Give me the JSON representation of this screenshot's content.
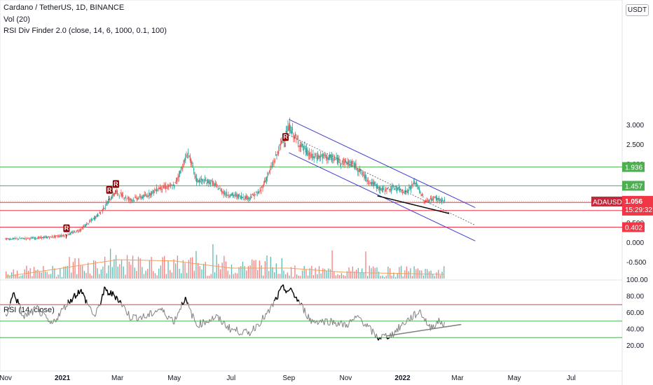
{
  "header": {
    "title": "Cardano / TetherUS, 1D, BINANCE",
    "vol": "Vol (20)",
    "indicator": "RSI Div Finder 2.0 (close, 14, 6, 1000, 0.1, 100)",
    "currency": "USDT",
    "rsi_title": "RSI (14, close)"
  },
  "colors": {
    "up": "#26a69a",
    "down": "#ef5350",
    "channel": "#3f3fd0",
    "support": "#4caf50",
    "resistance": "#f23645",
    "rsi": "#808080",
    "signal": "#8b0000",
    "ma": "#f5a05a"
  },
  "chart_data": [
    {
      "type": "candlestick",
      "symbol": "ADAUSDT",
      "ylim": [
        -0.5,
        3.5
      ],
      "y_ticks": [
        "3.000",
        "2.500",
        "2.000",
        "1.500",
        "1.000",
        "0.500",
        "0.000",
        "-0.500"
      ],
      "x_ticks": [
        "Nov",
        "2021",
        "Mar",
        "May",
        "Jul",
        "Sep",
        "Nov",
        "2022",
        "Mar",
        "May",
        "Jul"
      ],
      "price_series": [
        {
          "d": "2020-11-01",
          "v": 0.1
        },
        {
          "d": "2020-12-01",
          "v": 0.12
        },
        {
          "d": "2020-12-20",
          "v": 0.15
        },
        {
          "d": "2021-01-05",
          "v": 0.2
        },
        {
          "d": "2021-01-20",
          "v": 0.33
        },
        {
          "d": "2021-02-10",
          "v": 0.75
        },
        {
          "d": "2021-02-27",
          "v": 1.3
        },
        {
          "d": "2021-03-15",
          "v": 1.1
        },
        {
          "d": "2021-04-01",
          "v": 1.2
        },
        {
          "d": "2021-04-15",
          "v": 1.4
        },
        {
          "d": "2021-05-01",
          "v": 1.45
        },
        {
          "d": "2021-05-16",
          "v": 2.3
        },
        {
          "d": "2021-05-25",
          "v": 1.6
        },
        {
          "d": "2021-06-10",
          "v": 1.55
        },
        {
          "d": "2021-06-25",
          "v": 1.25
        },
        {
          "d": "2021-07-20",
          "v": 1.15
        },
        {
          "d": "2021-08-01",
          "v": 1.3
        },
        {
          "d": "2021-08-15",
          "v": 2.0
        },
        {
          "d": "2021-08-25",
          "v": 2.6
        },
        {
          "d": "2021-09-02",
          "v": 2.95
        },
        {
          "d": "2021-09-10",
          "v": 2.6
        },
        {
          "d": "2021-09-25",
          "v": 2.2
        },
        {
          "d": "2021-10-10",
          "v": 2.2
        },
        {
          "d": "2021-10-25",
          "v": 2.1
        },
        {
          "d": "2021-11-10",
          "v": 2.0
        },
        {
          "d": "2021-11-25",
          "v": 1.6
        },
        {
          "d": "2021-12-10",
          "v": 1.35
        },
        {
          "d": "2021-12-25",
          "v": 1.4
        },
        {
          "d": "2022-01-05",
          "v": 1.3
        },
        {
          "d": "2022-01-15",
          "v": 1.55
        },
        {
          "d": "2022-01-25",
          "v": 1.05
        },
        {
          "d": "2022-02-05",
          "v": 1.15
        },
        {
          "d": "2022-02-15",
          "v": 1.056
        }
      ],
      "vol_ma": [
        {
          "d": "2020-11-01",
          "v": 0.05
        },
        {
          "d": "2021-01-01",
          "v": 0.25
        },
        {
          "d": "2021-03-01",
          "v": 0.45
        },
        {
          "d": "2021-05-01",
          "v": 0.42
        },
        {
          "d": "2021-07-01",
          "v": 0.25
        },
        {
          "d": "2021-09-01",
          "v": 0.25
        },
        {
          "d": "2021-11-01",
          "v": 0.15
        },
        {
          "d": "2022-01-01",
          "v": 0.12
        },
        {
          "d": "2022-02-15",
          "v": 0.1
        }
      ],
      "horizontal_levels": [
        {
          "value": 1.936,
          "label": "1.936",
          "color": "#4caf50"
        },
        {
          "value": 1.457,
          "label": "1.457",
          "color": "#4caf50"
        },
        {
          "value": 1.032,
          "label": "1.032",
          "color": "#f23645"
        },
        {
          "value": 0.827,
          "label": "0.827",
          "color": "#f23645"
        },
        {
          "value": 0.402,
          "label": "0.402",
          "color": "#f23645"
        }
      ],
      "current_price": {
        "symbol": "ADAUSDT",
        "value": "1.056",
        "countdown": "15:29:32"
      },
      "channel": {
        "upper": [
          {
            "d": "2021-09-01",
            "v": 3.15
          },
          {
            "d": "2022-03-20",
            "v": 0.9
          }
        ],
        "middle": [
          {
            "d": "2021-09-01",
            "v": 2.75
          },
          {
            "d": "2022-03-20",
            "v": 0.45
          }
        ],
        "lower": [
          {
            "d": "2021-09-01",
            "v": 2.3
          },
          {
            "d": "2022-03-20",
            "v": 0.05
          }
        ]
      },
      "trendline": [
        {
          "d": "2021-12-05",
          "v": 1.2
        },
        {
          "d": "2022-02-20",
          "v": 0.75
        }
      ],
      "divergence_markers": [
        {
          "d": "2021-01-05",
          "v": 0.22,
          "label": "R"
        },
        {
          "d": "2021-02-20",
          "v": 1.2,
          "label": "R"
        },
        {
          "d": "2021-02-27",
          "v": 1.35,
          "label": "R"
        },
        {
          "d": "2021-08-28",
          "v": 2.55,
          "label": "R"
        }
      ]
    },
    {
      "type": "line",
      "title": "RSI (14, close)",
      "ylim": [
        10,
        100
      ],
      "y_ticks": [
        "100.00",
        "80.00",
        "60.00",
        "40.00",
        "20.00"
      ],
      "levels": [
        {
          "value": 70,
          "color": "#f23645"
        },
        {
          "value": 50,
          "color": "#4caf50"
        },
        {
          "value": 30,
          "color": "#4caf50"
        }
      ],
      "series": [
        {
          "d": "2020-11-01",
          "v": 55
        },
        {
          "d": "2020-11-10",
          "v": 85
        },
        {
          "d": "2020-11-20",
          "v": 55
        },
        {
          "d": "2020-12-05",
          "v": 65
        },
        {
          "d": "2020-12-20",
          "v": 45
        },
        {
          "d": "2021-01-05",
          "v": 70
        },
        {
          "d": "2021-01-20",
          "v": 88
        },
        {
          "d": "2021-02-05",
          "v": 55
        },
        {
          "d": "2021-02-15",
          "v": 87
        },
        {
          "d": "2021-02-28",
          "v": 80
        },
        {
          "d": "2021-03-15",
          "v": 55
        },
        {
          "d": "2021-04-01",
          "v": 55
        },
        {
          "d": "2021-04-15",
          "v": 65
        },
        {
          "d": "2021-05-01",
          "v": 50
        },
        {
          "d": "2021-05-12",
          "v": 78
        },
        {
          "d": "2021-05-25",
          "v": 45
        },
        {
          "d": "2021-06-15",
          "v": 55
        },
        {
          "d": "2021-07-01",
          "v": 40
        },
        {
          "d": "2021-07-20",
          "v": 35
        },
        {
          "d": "2021-08-10",
          "v": 60
        },
        {
          "d": "2021-08-25",
          "v": 90
        },
        {
          "d": "2021-09-05",
          "v": 85
        },
        {
          "d": "2021-09-25",
          "v": 50
        },
        {
          "d": "2021-10-15",
          "v": 50
        },
        {
          "d": "2021-11-01",
          "v": 45
        },
        {
          "d": "2021-11-15",
          "v": 55
        },
        {
          "d": "2021-12-05",
          "v": 30
        },
        {
          "d": "2021-12-20",
          "v": 33
        },
        {
          "d": "2022-01-05",
          "v": 50
        },
        {
          "d": "2022-01-20",
          "v": 62
        },
        {
          "d": "2022-01-30",
          "v": 42
        },
        {
          "d": "2022-02-10",
          "v": 50
        },
        {
          "d": "2022-02-15",
          "v": 45
        }
      ],
      "trendline": [
        {
          "d": "2021-12-15",
          "v": 32
        },
        {
          "d": "2022-03-05",
          "v": 46
        }
      ]
    }
  ]
}
